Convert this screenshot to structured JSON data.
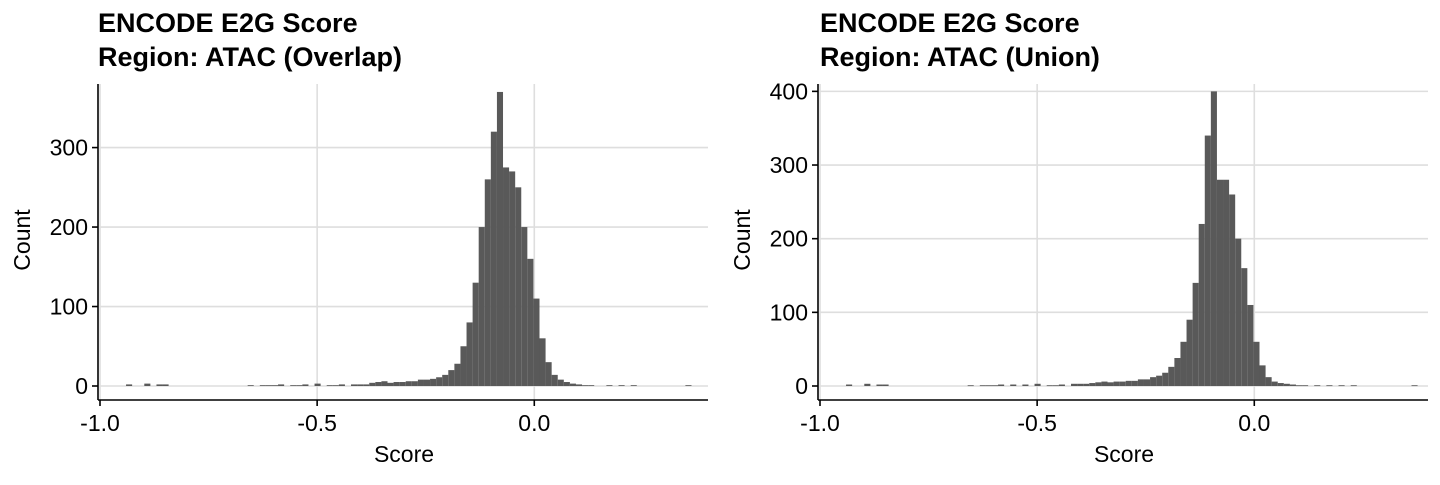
{
  "chart_data": [
    {
      "type": "bar",
      "title": "ENCODE E2G Score",
      "subtitle": "Region: ATAC (Overlap)",
      "xlabel": "Score",
      "ylabel": "Count",
      "xlim": [
        -1.0,
        0.4
      ],
      "ylim": [
        0,
        380
      ],
      "x_ticks": [
        -1.0,
        -0.5,
        0.0
      ],
      "x_tick_labels": [
        "-1.0",
        "-0.5",
        "0.0"
      ],
      "y_ticks": [
        0,
        100,
        200,
        300
      ],
      "y_tick_labels": [
        "0",
        "100",
        "200",
        "300"
      ],
      "grid": true,
      "bin_width": 0.014,
      "bin_start": -0.94,
      "values": [
        2,
        0,
        0,
        3,
        0,
        2,
        2,
        0,
        0,
        0,
        0,
        0,
        0,
        0,
        0,
        0,
        0,
        0,
        0,
        0,
        1,
        0,
        1,
        1,
        1,
        2,
        0,
        1,
        1,
        2,
        0,
        3,
        0,
        1,
        1,
        2,
        0,
        2,
        2,
        2,
        4,
        5,
        6,
        4,
        5,
        5,
        6,
        6,
        8,
        8,
        9,
        11,
        14,
        20,
        28,
        50,
        80,
        130,
        200,
        260,
        320,
        370,
        275,
        270,
        250,
        200,
        160,
        110,
        60,
        30,
        14,
        8,
        5,
        3,
        2,
        1,
        1,
        0,
        0,
        1,
        0,
        1,
        0,
        1,
        0,
        0,
        0,
        0,
        0,
        0,
        0,
        0,
        1,
        0,
        0,
        0,
        0,
        0
      ]
    },
    {
      "type": "bar",
      "title": "ENCODE E2G Score",
      "subtitle": "Region: ATAC (Union)",
      "xlabel": "Score",
      "ylabel": "Count",
      "xlim": [
        -1.0,
        0.4
      ],
      "ylim": [
        0,
        410
      ],
      "x_ticks": [
        -1.0,
        -0.5,
        0.0
      ],
      "x_tick_labels": [
        "-1.0",
        "-0.5",
        "0.0"
      ],
      "y_ticks": [
        0,
        100,
        200,
        300,
        400
      ],
      "y_tick_labels": [
        "0",
        "100",
        "200",
        "300",
        "400"
      ],
      "grid": true,
      "bin_width": 0.014,
      "bin_start": -0.94,
      "values": [
        2,
        0,
        0,
        3,
        0,
        2,
        2,
        0,
        0,
        0,
        0,
        0,
        0,
        0,
        0,
        0,
        0,
        0,
        0,
        0,
        1,
        0,
        1,
        1,
        1,
        2,
        0,
        2,
        0,
        2,
        0,
        3,
        0,
        1,
        1,
        2,
        0,
        3,
        3,
        3,
        4,
        5,
        6,
        5,
        6,
        6,
        7,
        7,
        9,
        9,
        12,
        14,
        18,
        26,
        38,
        60,
        90,
        140,
        220,
        340,
        400,
        280,
        280,
        260,
        200,
        160,
        110,
        60,
        28,
        12,
        6,
        4,
        3,
        2,
        1,
        1,
        0,
        1,
        0,
        1,
        0,
        1,
        0,
        1,
        0,
        0,
        0,
        0,
        0,
        0,
        0,
        0,
        0,
        1,
        0,
        0,
        0,
        0
      ]
    }
  ]
}
